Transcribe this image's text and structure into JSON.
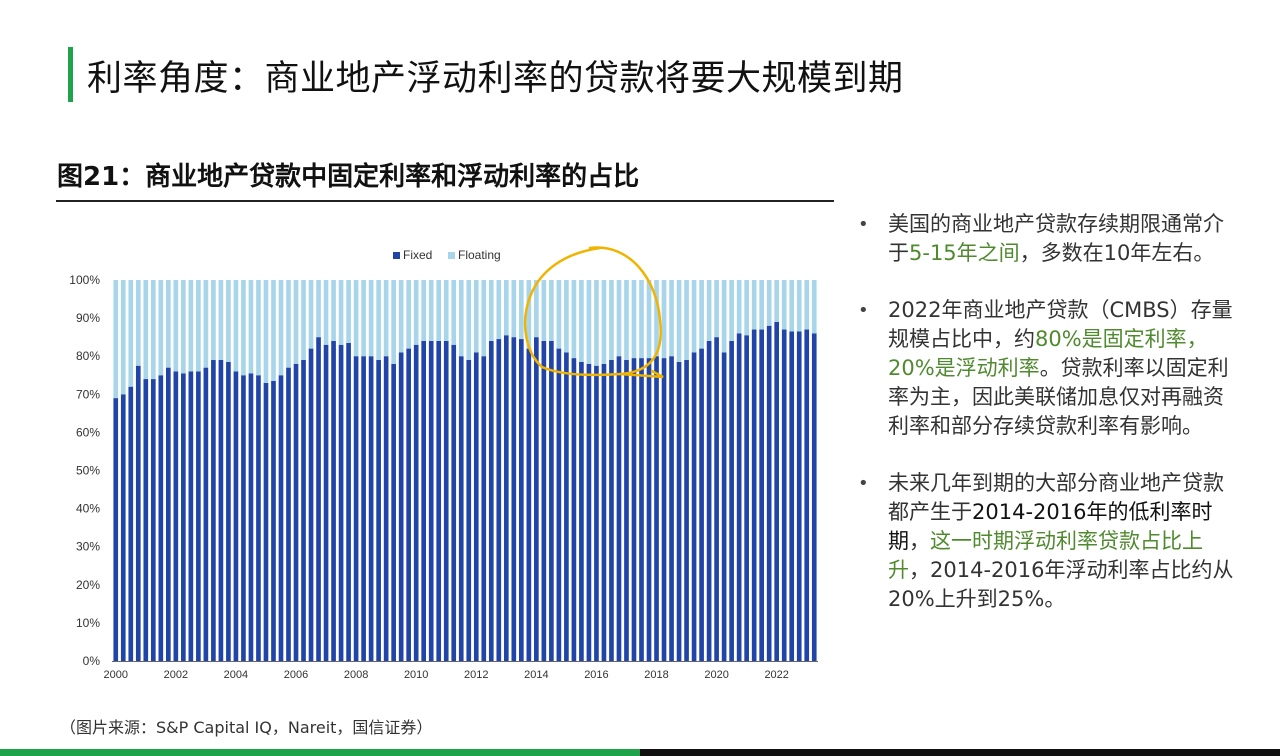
{
  "page_title": "利率角度：商业地产浮动利率的贷款将要大规模到期",
  "figure_title": "图21：商业地产贷款中固定利率和浮动利率的占比",
  "source": "（图片来源：S&P Capital IQ，Nareit，国信证券）",
  "bullets": [
    {
      "parts": [
        {
          "text": "美国的商业地产贷款存续期限通常介于",
          "style": "normal"
        },
        {
          "text": "5-15年之间",
          "style": "highlight"
        },
        {
          "text": "，多数在10年左右。",
          "style": "normal"
        }
      ]
    },
    {
      "parts": [
        {
          "text": "2022年商业地产贷款（CMBS）存量规模占比中，约",
          "style": "normal"
        },
        {
          "text": "80%是固定利率，20%是浮动利率",
          "style": "highlight"
        },
        {
          "text": "。贷款利率以固定利率为主，因此美联储加息仅对再融资利率和部分存续贷款利率有影响。",
          "style": "normal"
        }
      ]
    },
    {
      "parts": [
        {
          "text": "未来几年到期的大部分商业地产贷款都产生于",
          "style": "normal"
        },
        {
          "text": "2014-2016年的低利率时期",
          "style": "dark"
        },
        {
          "text": "，",
          "style": "normal"
        },
        {
          "text": "这一时期浮动利率贷款占比上升",
          "style": "highlight"
        },
        {
          "text": "，2014-2016年浮动利率占比约从20%上升到25%。",
          "style": "normal"
        }
      ]
    }
  ],
  "colors": {
    "fixed": "#2044a8",
    "floating": "#a9d5ea",
    "accent_green": "#1ea24a",
    "highlight_text": "#4f8a2f",
    "annotation": "#f0b400"
  },
  "chart_data": {
    "type": "bar",
    "stacked": true,
    "legend": {
      "position": "top-center",
      "items": [
        "Fixed",
        "Floating"
      ]
    },
    "x_tick_labels": [
      "2000",
      "2002",
      "2004",
      "2006",
      "2008",
      "2010",
      "2012",
      "2014",
      "2016",
      "2018",
      "2020",
      "2022"
    ],
    "y_tick_labels": [
      "0%",
      "10%",
      "20%",
      "30%",
      "40%",
      "50%",
      "60%",
      "70%",
      "80%",
      "90%",
      "100%"
    ],
    "ylim": [
      0,
      100
    ],
    "x_range": [
      "2000Q1",
      "2022Q4"
    ],
    "series": [
      {
        "name": "Fixed",
        "values": [
          69,
          70,
          72,
          77.5,
          74,
          74,
          75,
          77,
          76,
          75.5,
          76,
          76,
          77,
          79,
          79,
          78.5,
          76,
          75,
          75.5,
          75,
          73,
          73.5,
          75,
          77,
          78,
          79,
          82,
          85,
          83,
          84,
          83,
          83.5,
          80,
          80,
          80,
          79,
          80,
          78,
          81,
          82,
          83,
          84,
          84,
          84,
          84,
          83,
          80,
          79,
          81,
          80,
          84,
          84.5,
          85.5,
          85,
          84.5,
          82,
          85,
          84,
          84,
          82,
          81,
          79.5,
          78.5,
          78,
          77.5,
          78,
          79,
          80,
          79,
          79.5,
          79.5,
          79.5,
          80,
          79.5,
          80,
          78.5,
          79,
          81,
          82,
          84,
          85,
          81,
          84,
          86,
          85.5,
          87,
          87,
          88,
          89,
          87,
          86.5,
          86.5,
          87,
          86
        ]
      },
      {
        "name": "Floating",
        "values": [
          31,
          30,
          28,
          22.5,
          26,
          26,
          25,
          23,
          24,
          24.5,
          24,
          24,
          23,
          21,
          21,
          21.5,
          24,
          25,
          24.5,
          25,
          27,
          26.5,
          25,
          23,
          22,
          21,
          18,
          15,
          17,
          16,
          17,
          16.5,
          20,
          20,
          20,
          21,
          20,
          22,
          19,
          18,
          17,
          16,
          16,
          16,
          16,
          17,
          20,
          21,
          19,
          20,
          16,
          15.5,
          14.5,
          15,
          15.5,
          18,
          15,
          16,
          16,
          18,
          19,
          20.5,
          21.5,
          22,
          22.5,
          22,
          21,
          20,
          21,
          20.5,
          20.5,
          20.5,
          20,
          20.5,
          20,
          21.5,
          21,
          19,
          18,
          16,
          15,
          19,
          16,
          14,
          14.5,
          13,
          13,
          12,
          11,
          13,
          13.5,
          13.5,
          13,
          14
        ]
      }
    ]
  },
  "annotation": {
    "shape": "hand-drawn-circle",
    "target_period": "2014-2017"
  }
}
